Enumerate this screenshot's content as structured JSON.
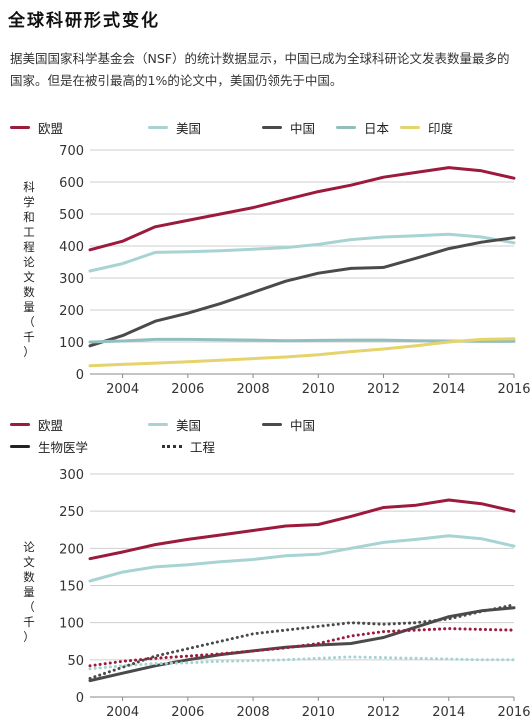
{
  "title": "全球科研形式变化",
  "description": "据美国国家科学基金会（NSF）的统计数据显示，中国已成为全球科研论文发表数量最多的国家。但是在被引最高的1%的论文中，美国仍领先于中国。",
  "chart_data": [
    {
      "type": "line",
      "ylabel": "科学和工程论文数量（千）",
      "ylim": [
        0,
        700
      ],
      "yticks": [
        0,
        100,
        200,
        300,
        400,
        500,
        600,
        700
      ],
      "xlim": [
        2003,
        2016
      ],
      "xticks": [
        2004,
        2006,
        2008,
        2010,
        2012,
        2014,
        2016
      ],
      "grid": true,
      "legend": [
        {
          "label": "欧盟",
          "color": "#9c1a3c"
        },
        {
          "label": "美国",
          "color": "#a7d4d2"
        },
        {
          "label": "中国",
          "color": "#4a4a4a"
        },
        {
          "label": "日本",
          "color": "#92bfbd"
        },
        {
          "label": "印度",
          "color": "#e6d36c"
        }
      ],
      "series": [
        {
          "name": "欧盟",
          "color": "#9c1a3c",
          "x": [
            2003,
            2004,
            2005,
            2006,
            2007,
            2008,
            2009,
            2010,
            2011,
            2012,
            2013,
            2014,
            2015,
            2016
          ],
          "values": [
            388,
            415,
            460,
            480,
            500,
            520,
            545,
            570,
            590,
            615,
            630,
            645,
            635,
            612
          ]
        },
        {
          "name": "美国",
          "color": "#a7d4d2",
          "x": [
            2003,
            2004,
            2005,
            2006,
            2007,
            2008,
            2009,
            2010,
            2011,
            2012,
            2013,
            2014,
            2015,
            2016
          ],
          "values": [
            322,
            345,
            380,
            382,
            385,
            390,
            395,
            405,
            420,
            428,
            432,
            437,
            428,
            410
          ]
        },
        {
          "name": "中国",
          "color": "#4a4a4a",
          "x": [
            2003,
            2004,
            2005,
            2006,
            2007,
            2008,
            2009,
            2010,
            2011,
            2012,
            2013,
            2014,
            2015,
            2016
          ],
          "values": [
            88,
            120,
            165,
            190,
            220,
            255,
            290,
            315,
            330,
            333,
            362,
            392,
            412,
            426
          ]
        },
        {
          "name": "日本",
          "color": "#92bfbd",
          "x": [
            2003,
            2004,
            2005,
            2006,
            2007,
            2008,
            2009,
            2010,
            2011,
            2012,
            2013,
            2014,
            2015,
            2016
          ],
          "values": [
            100,
            103,
            108,
            108,
            107,
            106,
            104,
            105,
            106,
            106,
            104,
            103,
            102,
            102
          ]
        },
        {
          "name": "印度",
          "color": "#e6d36c",
          "x": [
            2003,
            2004,
            2005,
            2006,
            2007,
            2008,
            2009,
            2010,
            2011,
            2012,
            2013,
            2014,
            2015,
            2016
          ],
          "values": [
            26,
            30,
            34,
            38,
            43,
            48,
            53,
            60,
            70,
            78,
            88,
            100,
            108,
            110
          ]
        }
      ]
    },
    {
      "type": "line",
      "ylabel": "论文数量（千）",
      "ylim": [
        0,
        300
      ],
      "yticks": [
        0,
        50,
        100,
        150,
        200,
        250,
        300
      ],
      "xlim": [
        2003,
        2016
      ],
      "xticks": [
        2004,
        2006,
        2008,
        2010,
        2012,
        2014,
        2016
      ],
      "grid": true,
      "legend": [
        {
          "label": "欧盟",
          "color": "#9c1a3c",
          "style": "solid"
        },
        {
          "label": "美国",
          "color": "#a7d4d2",
          "style": "solid"
        },
        {
          "label": "中国",
          "color": "#4a4a4a",
          "style": "solid"
        },
        {
          "label": "生物医学",
          "color": "#222222",
          "style": "solid"
        },
        {
          "label": "工程",
          "color": "#222222",
          "style": "dotted"
        }
      ],
      "series": [
        {
          "name": "欧盟",
          "color": "#9c1a3c",
          "style": "solid",
          "x": [
            2003,
            2004,
            2005,
            2006,
            2007,
            2008,
            2009,
            2010,
            2011,
            2012,
            2013,
            2014,
            2015,
            2016
          ],
          "values": [
            186,
            195,
            205,
            212,
            218,
            224,
            230,
            232,
            243,
            255,
            258,
            265,
            260,
            250
          ]
        },
        {
          "name": "美国",
          "color": "#a7d4d2",
          "style": "solid",
          "x": [
            2003,
            2004,
            2005,
            2006,
            2007,
            2008,
            2009,
            2010,
            2011,
            2012,
            2013,
            2014,
            2015,
            2016
          ],
          "values": [
            156,
            168,
            175,
            178,
            182,
            185,
            190,
            192,
            200,
            208,
            212,
            217,
            213,
            203
          ]
        },
        {
          "name": "中国",
          "color": "#4a4a4a",
          "style": "solid",
          "x": [
            2003,
            2004,
            2005,
            2006,
            2007,
            2008,
            2009,
            2010,
            2011,
            2012,
            2013,
            2014,
            2015,
            2016
          ],
          "values": [
            22,
            32,
            42,
            50,
            57,
            62,
            67,
            70,
            72,
            80,
            94,
            108,
            116,
            120
          ]
        },
        {
          "name": "欧盟",
          "color": "#9c1a3c",
          "style": "dotted",
          "x": [
            2003,
            2004,
            2005,
            2006,
            2007,
            2008,
            2009,
            2010,
            2011,
            2012,
            2013,
            2014,
            2015,
            2016
          ],
          "values": [
            42,
            48,
            52,
            55,
            58,
            62,
            66,
            72,
            82,
            88,
            90,
            92,
            91,
            90
          ]
        },
        {
          "name": "美国",
          "color": "#a7d4d2",
          "style": "dotted",
          "x": [
            2003,
            2004,
            2005,
            2006,
            2007,
            2008,
            2009,
            2010,
            2011,
            2012,
            2013,
            2014,
            2015,
            2016
          ],
          "values": [
            38,
            42,
            45,
            46,
            48,
            49,
            50,
            52,
            54,
            53,
            52,
            51,
            50,
            50
          ]
        },
        {
          "name": "中国",
          "color": "#4a4a4a",
          "style": "dotted",
          "x": [
            2003,
            2004,
            2005,
            2006,
            2007,
            2008,
            2009,
            2010,
            2011,
            2012,
            2013,
            2014,
            2015,
            2016
          ],
          "values": [
            25,
            40,
            55,
            65,
            75,
            85,
            90,
            95,
            100,
            98,
            100,
            105,
            115,
            124
          ]
        }
      ]
    }
  ]
}
